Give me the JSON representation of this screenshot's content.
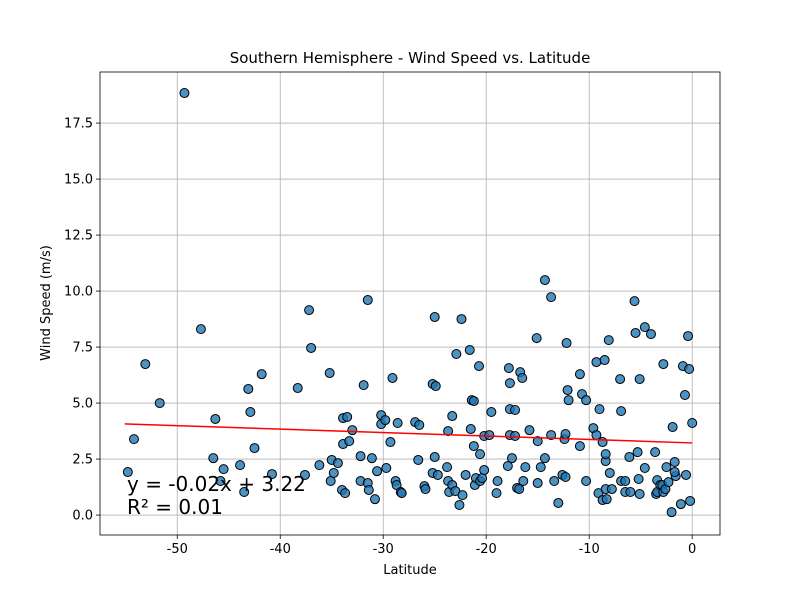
{
  "chart_data": {
    "type": "scatter",
    "title": "Southern Hemisphere - Wind Speed vs. Latitude",
    "x_label": "Latitude",
    "y_label": "Wind Speed (m/s)",
    "xlim": [
      -57.5,
      2.7
    ],
    "ylim": [
      -0.89,
      19.78
    ],
    "xticks": [
      -50,
      -40,
      -30,
      -20,
      -10,
      0
    ],
    "yticks": [
      {
        "value": 0,
        "label": "0.0"
      },
      {
        "value": 2.5,
        "label": "2.5"
      },
      {
        "value": 5,
        "label": "5.0"
      },
      {
        "value": 7.5,
        "label": "7.5"
      },
      {
        "value": 10,
        "label": "10.0"
      },
      {
        "value": 12.5,
        "label": "12.5"
      },
      {
        "value": 15,
        "label": "15.0"
      },
      {
        "value": 17.5,
        "label": "17.5"
      }
    ],
    "grid": true,
    "color": "#1f77b4",
    "x": [
      -49.3,
      -53.1,
      -51.7,
      -54.2,
      -54.8,
      -47.7,
      -46.3,
      -46.5,
      -45.5,
      -45.8,
      -43.9,
      -43.5,
      -43.1,
      -42.9,
      -42.5,
      -41.8,
      -40.8,
      -38.3,
      -37.6,
      -37.2,
      -37.0,
      -36.2,
      -35.2,
      -35.0,
      -35.1,
      -34.8,
      -34.4,
      -34.0,
      -33.7,
      -33.9,
      -33.5,
      -33.9,
      -33.3,
      -33.0,
      -32.2,
      -32.2,
      -31.9,
      -31.5,
      -31.5,
      -31.4,
      -31.1,
      -30.8,
      -30.6,
      -30.2,
      -30.2,
      -29.8,
      -29.7,
      -29.3,
      -29.1,
      -28.8,
      -28.7,
      -28.6,
      -28.3,
      -28.2,
      -26.9,
      -26.6,
      -26.5,
      -26.0,
      -25.9,
      -25.2,
      -25.0,
      -24.9,
      -25.2,
      -25.0,
      -24.7,
      -23.8,
      -23.7,
      -23.7,
      -23.6,
      -23.3,
      -23.3,
      -23.0,
      -22.9,
      -22.6,
      -22.4,
      -22.3,
      -22.0,
      -21.6,
      -21.5,
      -21.4,
      -21.2,
      -21.2,
      -21.1,
      -21.0,
      -20.7,
      -20.6,
      -20.6,
      -20.4,
      -20.2,
      -20.2,
      -19.7,
      -19.5,
      -19.0,
      -18.9,
      -17.9,
      -17.8,
      -17.7,
      -17.7,
      -17.7,
      -17.5,
      -17.2,
      -17.2,
      -17.0,
      -16.8,
      -16.7,
      -16.5,
      -16.4,
      -16.2,
      -15.8,
      -15.1,
      -15.0,
      -15.0,
      -14.7,
      -14.3,
      -14.3,
      -13.7,
      -13.7,
      -13.4,
      -13.0,
      -12.6,
      -12.4,
      -12.3,
      -12.2,
      -12.1,
      -12.0,
      -12.3,
      -10.9,
      -10.9,
      -10.7,
      -10.3,
      -10.3,
      -9.6,
      -9.3,
      -9.3,
      -9.1,
      -9.0,
      -8.7,
      -8.7,
      -8.5,
      -8.4,
      -8.4,
      -8.4,
      -8.3,
      -8.1,
      -8.0,
      -7.8,
      -7.0,
      -6.9,
      -6.9,
      -6.5,
      -6.5,
      -6.1,
      -6.0,
      -5.6,
      -5.5,
      -5.3,
      -5.1,
      -5.1,
      -5.2,
      -4.6,
      -4.6,
      -4.0,
      -3.6,
      -3.5,
      -3.4,
      -3.4,
      -3.1,
      -2.9,
      -2.8,
      -2.8,
      -2.6,
      -2.5,
      -2.3,
      -2.0,
      -1.9,
      -1.7,
      -1.6,
      -1.7,
      -1.1,
      -0.9,
      -0.7,
      -0.6,
      -0.4,
      -0.3,
      -0.2,
      0.0
    ],
    "values": [
      18.84,
      6.74,
      5.0,
      3.39,
      1.92,
      8.3,
      4.29,
      2.54,
      2.05,
      1.52,
      2.23,
      1.03,
      5.63,
      4.6,
      2.99,
      6.29,
      1.83,
      5.67,
      1.79,
      9.15,
      7.46,
      2.23,
      6.34,
      2.46,
      1.52,
      1.88,
      2.32,
      1.12,
      0.98,
      4.33,
      4.38,
      3.17,
      3.3,
      3.79,
      2.63,
      1.52,
      5.8,
      9.6,
      1.43,
      1.12,
      2.54,
      0.71,
      1.96,
      4.46,
      4.06,
      4.24,
      2.1,
      3.26,
      6.12,
      1.52,
      1.34,
      4.11,
      1.03,
      0.98,
      4.15,
      2.46,
      4.02,
      1.29,
      1.16,
      5.85,
      8.84,
      5.76,
      1.88,
      2.59,
      1.79,
      2.14,
      1.52,
      3.75,
      1.03,
      4.42,
      1.34,
      1.07,
      7.19,
      0.45,
      8.75,
      0.89,
      1.79,
      7.37,
      3.84,
      5.13,
      5.09,
      3.08,
      1.34,
      1.65,
      6.65,
      2.72,
      1.52,
      1.65,
      2.01,
      3.53,
      3.57,
      4.6,
      0.98,
      1.52,
      2.19,
      6.56,
      4.73,
      5.89,
      3.57,
      2.54,
      4.69,
      3.53,
      1.21,
      1.16,
      6.38,
      6.12,
      1.52,
      2.14,
      3.79,
      7.9,
      1.43,
      3.3,
      2.14,
      10.49,
      2.54,
      9.73,
      3.57,
      1.52,
      0.54,
      1.79,
      3.39,
      3.62,
      7.68,
      5.58,
      5.13,
      1.7,
      6.29,
      3.08,
      5.4,
      5.13,
      1.52,
      3.88,
      3.57,
      6.83,
      0.98,
      4.73,
      0.67,
      3.26,
      6.92,
      2.41,
      2.72,
      1.16,
      0.71,
      7.81,
      1.88,
      1.16,
      6.07,
      1.52,
      4.64,
      1.52,
      1.03,
      2.59,
      1.03,
      9.55,
      8.13,
      2.81,
      6.07,
      0.94,
      1.61,
      8.39,
      2.1,
      8.08,
      2.81,
      0.94,
      1.56,
      1.03,
      1.34,
      1.34,
      6.74,
      1.03,
      1.16,
      2.14,
      1.47,
      0.13,
      3.93,
      2.37,
      1.74,
      1.92,
      0.49,
      6.65,
      5.36,
      1.79,
      7.99,
      6.52,
      0.63,
      4.11
    ],
    "regression": {
      "x": [
        -55.1,
        0.0
      ],
      "y": [
        4.07,
        3.22
      ],
      "color": "#ff0000"
    },
    "annotations": [
      "y = -0.02x + 3.22",
      "R² = 0.01"
    ]
  }
}
